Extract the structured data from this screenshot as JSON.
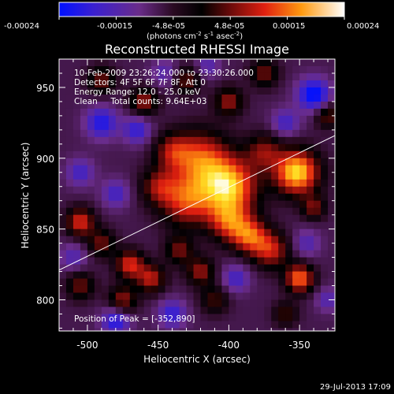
{
  "chart_data": {
    "type": "heatmap",
    "title": "Reconstructed RHESSI Image",
    "xlabel": "Heliocentric X (arcsec)",
    "ylabel": "Heliocentric Y (arcsec)",
    "xlim": [
      -520,
      -325
    ],
    "ylim": [
      778,
      970
    ],
    "xticks": [
      -500,
      -450,
      -400,
      -350
    ],
    "yticks": [
      800,
      850,
      900,
      950
    ],
    "colorbar": {
      "ticks": [
        "-0.00024",
        "-0.00015",
        "-4.8e-05",
        "4.8e-05",
        "0.00015",
        "0.00024"
      ],
      "unit_parts": [
        "(photons cm",
        "-2",
        " s",
        "-1",
        " asec",
        "-2",
        ")"
      ],
      "range": [
        -0.00024,
        0.00024
      ]
    },
    "info": {
      "time": "10-Feb-2009 23:26:24.000 to 23:30:26.000",
      "detectors": "Detectors: 4F 5F 6F 7F 8F, Att 0",
      "energy": "Energy Range: 12.0 - 25.0 keV",
      "clean": "Clean     Total counts: 9.64E+03"
    },
    "peak_label": "Position of Peak = [-352,890]",
    "limb_line": {
      "x": [
        -520,
        -325
      ],
      "y": [
        821,
        916
      ]
    },
    "blobs": [
      {
        "x": -400,
        "y": 880,
        "amp": 0.00026,
        "s": 14
      },
      {
        "x": -420,
        "y": 900,
        "amp": 0.00018,
        "s": 14
      },
      {
        "x": -430,
        "y": 870,
        "amp": 0.00018,
        "s": 13
      },
      {
        "x": -352,
        "y": 890,
        "amp": 0.00028,
        "s": 11
      },
      {
        "x": -400,
        "y": 855,
        "amp": 0.00016,
        "s": 10
      },
      {
        "x": -385,
        "y": 845,
        "amp": 0.00018,
        "s": 9
      },
      {
        "x": -370,
        "y": 835,
        "amp": 0.00016,
        "s": 9
      },
      {
        "x": -350,
        "y": 815,
        "amp": 0.00022,
        "s": 7
      },
      {
        "x": -440,
        "y": 905,
        "amp": 0.00012,
        "s": 9
      },
      {
        "x": -450,
        "y": 880,
        "amp": 0.00012,
        "s": 9
      },
      {
        "x": -375,
        "y": 905,
        "amp": 0.00012,
        "s": 9
      },
      {
        "x": -505,
        "y": 855,
        "amp": 0.00018,
        "s": 7
      },
      {
        "x": -490,
        "y": 840,
        "amp": 0.00012,
        "s": 7
      },
      {
        "x": -470,
        "y": 825,
        "amp": 0.00018,
        "s": 7
      },
      {
        "x": -455,
        "y": 815,
        "amp": 0.00016,
        "s": 7
      },
      {
        "x": -435,
        "y": 835,
        "amp": 0.00012,
        "s": 7
      },
      {
        "x": -420,
        "y": 820,
        "amp": 0.00014,
        "s": 7
      },
      {
        "x": -410,
        "y": 800,
        "amp": 0.0001,
        "s": 7
      },
      {
        "x": -475,
        "y": 800,
        "amp": 0.00014,
        "s": 7
      },
      {
        "x": -505,
        "y": 810,
        "amp": 0.00012,
        "s": 7
      },
      {
        "x": -460,
        "y": 940,
        "amp": 0.00014,
        "s": 7
      },
      {
        "x": -430,
        "y": 955,
        "amp": 0.00012,
        "s": 7
      },
      {
        "x": -400,
        "y": 940,
        "amp": 0.00014,
        "s": 7
      },
      {
        "x": -375,
        "y": 960,
        "amp": 0.00012,
        "s": 7
      },
      {
        "x": -330,
        "y": 930,
        "amp": 0.00012,
        "s": 6
      },
      {
        "x": -490,
        "y": 955,
        "amp": 0.00012,
        "s": 7
      },
      {
        "x": -360,
        "y": 790,
        "amp": 0.0001,
        "s": 6
      },
      {
        "x": -340,
        "y": 865,
        "amp": 0.00012,
        "s": 6
      },
      {
        "x": -490,
        "y": 925,
        "amp": -0.00014,
        "s": 8
      },
      {
        "x": -465,
        "y": 920,
        "amp": -0.00012,
        "s": 7
      },
      {
        "x": -505,
        "y": 890,
        "amp": -0.0001,
        "s": 7
      },
      {
        "x": -480,
        "y": 875,
        "amp": -0.0001,
        "s": 7
      },
      {
        "x": -510,
        "y": 830,
        "amp": -8e-05,
        "s": 7
      },
      {
        "x": -480,
        "y": 785,
        "amp": -0.00014,
        "s": 7
      },
      {
        "x": -440,
        "y": 790,
        "amp": -0.00012,
        "s": 7
      },
      {
        "x": -395,
        "y": 815,
        "amp": -0.0001,
        "s": 7
      },
      {
        "x": -340,
        "y": 945,
        "amp": -0.00018,
        "s": 8
      },
      {
        "x": -360,
        "y": 925,
        "amp": -0.0001,
        "s": 7
      },
      {
        "x": -345,
        "y": 840,
        "amp": -8e-05,
        "s": 7
      },
      {
        "x": -330,
        "y": 800,
        "amp": -8e-05,
        "s": 6
      },
      {
        "x": -445,
        "y": 960,
        "amp": -8e-05,
        "s": 7
      },
      {
        "x": -415,
        "y": 965,
        "amp": -8e-05,
        "s": 6
      }
    ]
  },
  "footer": {
    "timestamp": "29-Jul-2013 17:09"
  }
}
